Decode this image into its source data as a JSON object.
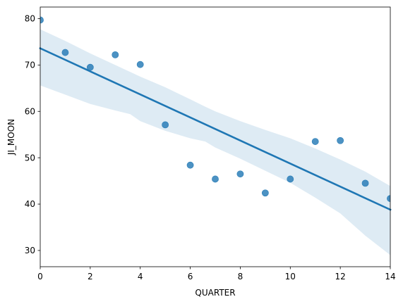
{
  "chart_data": {
    "type": "scatter",
    "title": "",
    "xlabel": "QUARTER",
    "ylabel": "JI_MOON",
    "xlim": [
      0,
      14
    ],
    "ylim": [
      26.5,
      82.5
    ],
    "xticks": [
      0,
      2,
      4,
      6,
      8,
      10,
      12,
      14
    ],
    "yticks": [
      30,
      40,
      50,
      60,
      70,
      80
    ],
    "grid": false,
    "legend": "none",
    "colors": {
      "points": "#1f77b4",
      "line": "#1f77b4",
      "band": "#1f77b4"
    },
    "points": [
      {
        "x": 0,
        "y": 79.7
      },
      {
        "x": 1,
        "y": 72.7
      },
      {
        "x": 2,
        "y": 69.5
      },
      {
        "x": 3,
        "y": 72.2
      },
      {
        "x": 4,
        "y": 70.1
      },
      {
        "x": 5,
        "y": 57.1
      },
      {
        "x": 6,
        "y": 48.4
      },
      {
        "x": 7,
        "y": 45.4
      },
      {
        "x": 8,
        "y": 46.5
      },
      {
        "x": 9,
        "y": 42.4
      },
      {
        "x": 10,
        "y": 45.4
      },
      {
        "x": 11,
        "y": 53.5
      },
      {
        "x": 12,
        "y": 53.7
      },
      {
        "x": 13,
        "y": 44.5
      },
      {
        "x": 14,
        "y": 41.2
      }
    ],
    "regression": {
      "x": [
        0,
        14
      ],
      "y": [
        73.6,
        38.8
      ]
    },
    "confidence_band": {
      "x": [
        0,
        1,
        2,
        3,
        3.6,
        4,
        5,
        6,
        6.6,
        7,
        8,
        9,
        10,
        11,
        12,
        13,
        14
      ],
      "lower": [
        65.6,
        63.6,
        61.6,
        60.2,
        59.4,
        57.9,
        55.8,
        54.2,
        53.5,
        52.2,
        49.8,
        47.2,
        44.6,
        41.4,
        38.0,
        33.2,
        29.0
      ],
      "upper": [
        77.7,
        75.2,
        72.5,
        70.0,
        68.5,
        67.5,
        65.2,
        62.6,
        61.0,
        60.0,
        57.9,
        56.0,
        54.2,
        52.0,
        49.6,
        47.0,
        43.9
      ]
    }
  }
}
